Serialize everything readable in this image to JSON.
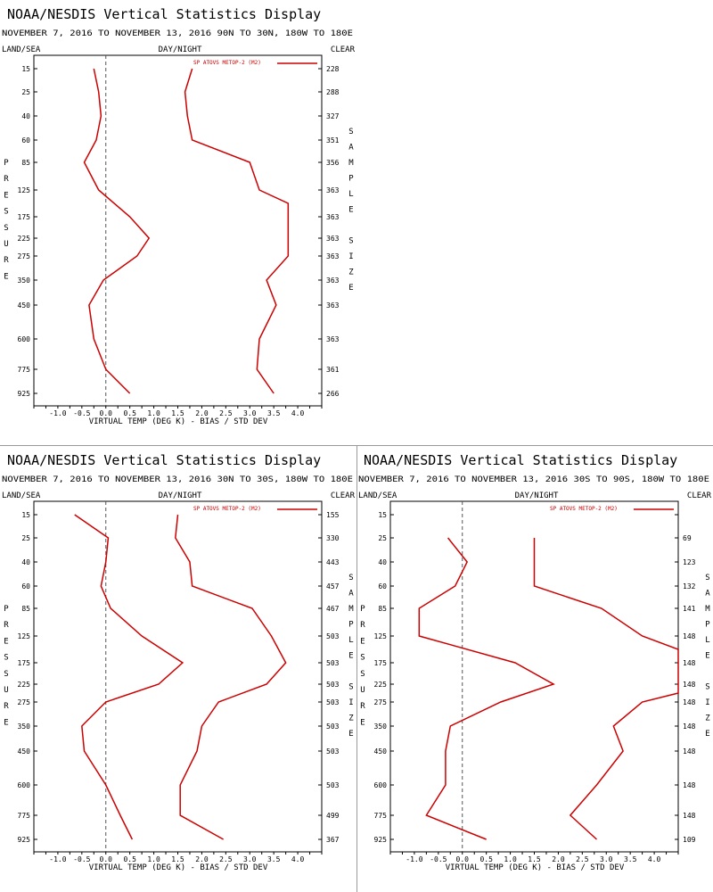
{
  "common": {
    "title": "NOAA/NESDIS Vertical Statistics Display",
    "land_sea": "LAND/SEA",
    "day_night": "DAY/NIGHT",
    "clear": "CLEAR",
    "xlabel": "VIRTUAL TEMP (DEG K) - BIAS / STD DEV",
    "ylabel_letters": [
      "P",
      "R",
      "E",
      "S",
      "S",
      "U",
      "R",
      "E"
    ],
    "right_letters": [
      "S",
      "A",
      "M",
      "P",
      "L",
      "E",
      "",
      "S",
      "I",
      "Z",
      "E"
    ],
    "legend": "SP ATOVS METOP-2 (M2)",
    "line_color": "#cc0000"
  },
  "chart_data": [
    {
      "type": "line",
      "subtitle": "NOVEMBER 7, 2016 TO NOVEMBER 13, 2016 90N TO 30N, 180W TO 180E",
      "xlim": [
        -1.5,
        4.5
      ],
      "xticks": [
        -1.0,
        -0.5,
        0.0,
        0.5,
        1.0,
        1.5,
        2.0,
        2.5,
        3.0,
        3.5,
        4.0
      ],
      "yticks": [
        15,
        25,
        40,
        60,
        85,
        125,
        175,
        225,
        275,
        350,
        450,
        600,
        775,
        925
      ],
      "sample_size": [
        "228",
        "288",
        "327",
        "351",
        "356",
        "363",
        "363",
        "363",
        "363",
        "363",
        "363",
        "363",
        "361",
        "266"
      ],
      "bias_pressure": [
        15,
        25,
        40,
        60,
        85,
        125,
        175,
        225,
        275,
        350,
        450,
        600,
        775,
        925
      ],
      "bias": [
        -0.25,
        -0.15,
        -0.1,
        -0.2,
        -0.45,
        -0.15,
        0.5,
        0.9,
        0.65,
        -0.05,
        -0.35,
        -0.25,
        0.0,
        0.5
      ],
      "std_pressure": [
        15,
        25,
        40,
        60,
        85,
        125,
        150,
        275,
        350,
        450,
        600,
        775,
        925
      ],
      "std_dev": [
        1.8,
        1.65,
        1.7,
        1.8,
        3.0,
        3.2,
        3.8,
        3.8,
        3.35,
        3.55,
        3.2,
        3.15,
        3.5
      ]
    },
    {
      "type": "line",
      "subtitle": "NOVEMBER 7, 2016 TO NOVEMBER 13, 2016 30N TO 30S, 180W TO 180E",
      "xlim": [
        -1.5,
        4.5
      ],
      "xticks": [
        -1.0,
        -0.5,
        0.0,
        0.5,
        1.0,
        1.5,
        2.0,
        2.5,
        3.0,
        3.5,
        4.0
      ],
      "yticks": [
        15,
        25,
        40,
        60,
        85,
        125,
        175,
        225,
        275,
        350,
        450,
        600,
        775,
        925
      ],
      "sample_size": [
        "155",
        "330",
        "443",
        "457",
        "467",
        "503",
        "503",
        "503",
        "503",
        "503",
        "503",
        "503",
        "499",
        "367"
      ],
      "bias_pressure": [
        15,
        25,
        40,
        60,
        85,
        125,
        175,
        225,
        275,
        350,
        450,
        600,
        775,
        925
      ],
      "bias": [
        -0.65,
        0.05,
        0.0,
        -0.1,
        0.1,
        0.75,
        1.6,
        1.1,
        0.0,
        -0.5,
        -0.45,
        0.0,
        0.3,
        0.55
      ],
      "std_pressure": [
        15,
        25,
        40,
        60,
        85,
        125,
        175,
        225,
        275,
        350,
        450,
        600,
        775,
        925
      ],
      "std_dev": [
        1.5,
        1.45,
        1.75,
        1.8,
        3.05,
        3.45,
        3.75,
        3.35,
        2.35,
        2.0,
        1.9,
        1.55,
        1.55,
        2.45
      ]
    },
    {
      "type": "line",
      "subtitle": "NOVEMBER 7, 2016 TO NOVEMBER 13, 2016 30S TO 90S, 180W TO 180E",
      "xlim": [
        -1.5,
        4.5
      ],
      "xticks": [
        -1.0,
        -0.5,
        0.0,
        0.5,
        1.0,
        1.5,
        2.0,
        2.5,
        3.0,
        3.5,
        4.0
      ],
      "yticks": [
        15,
        25,
        40,
        60,
        85,
        125,
        175,
        225,
        275,
        350,
        450,
        600,
        775,
        925
      ],
      "sample_size": [
        "",
        "69",
        "123",
        "132",
        "141",
        "148",
        "148",
        "148",
        "148",
        "148",
        "148",
        "148",
        "148",
        "109"
      ],
      "bias_pressure": [
        25,
        40,
        60,
        85,
        125,
        175,
        225,
        275,
        350,
        450,
        600,
        775,
        925
      ],
      "bias": [
        -0.3,
        0.1,
        -0.15,
        -0.9,
        -0.9,
        1.1,
        1.9,
        0.8,
        -0.25,
        -0.35,
        -0.35,
        -0.75,
        0.5
      ],
      "std_pressure": [
        25,
        40,
        60,
        85,
        125,
        150,
        250,
        275,
        350,
        450,
        600,
        775,
        925
      ],
      "std_dev": [
        1.5,
        1.5,
        1.5,
        2.9,
        3.75,
        4.5,
        4.5,
        3.75,
        3.15,
        3.35,
        2.8,
        2.25,
        2.8
      ]
    }
  ]
}
